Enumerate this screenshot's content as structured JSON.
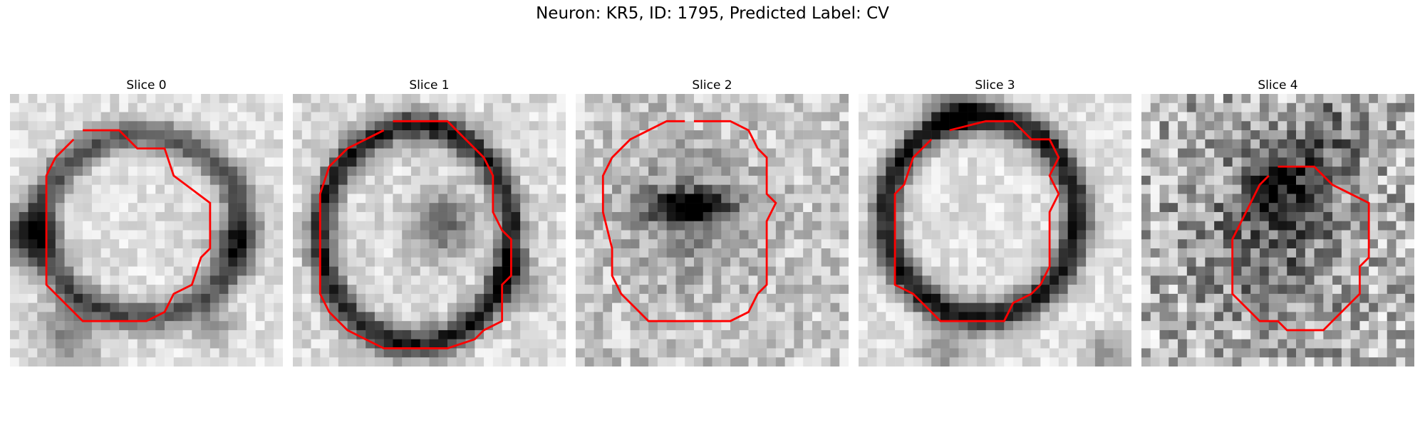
{
  "figure": {
    "title": "Neuron: KR5, ID: 1795, Predicted Label: CV"
  },
  "contour_color": "#ff0000",
  "colormap": "gray_r",
  "slices": [
    {
      "label": "Slice 0"
    },
    {
      "label": "Slice 1"
    },
    {
      "label": "Slice 2"
    },
    {
      "label": "Slice 3"
    },
    {
      "label": "Slice 4"
    }
  ]
}
